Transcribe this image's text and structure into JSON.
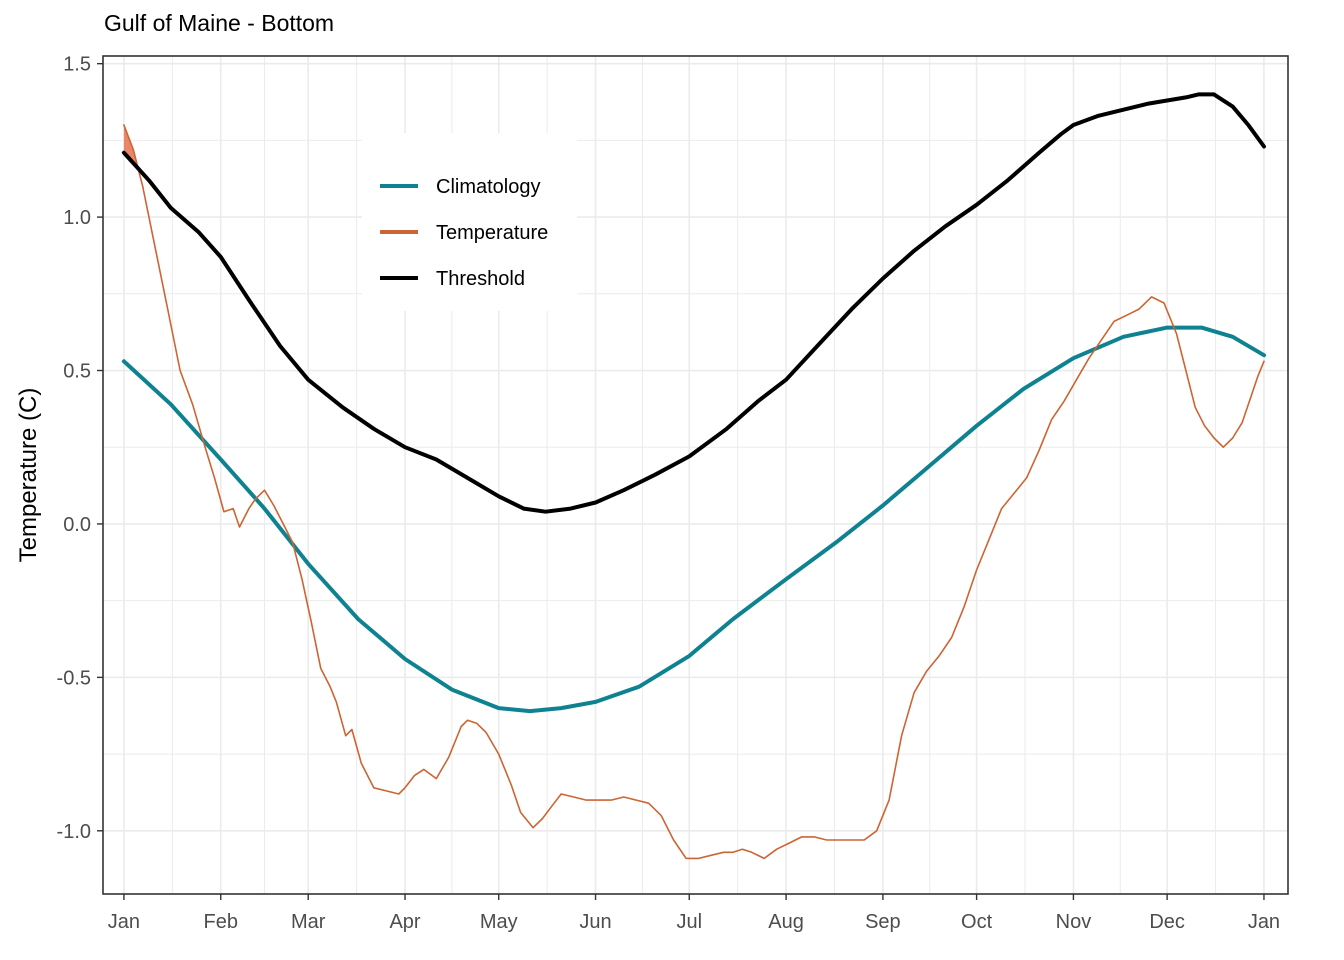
{
  "chart_data": {
    "type": "line",
    "title": "Gulf of Maine - Bottom",
    "xlabel": "",
    "ylabel": "Temperature (C)",
    "xlim": [
      0,
      365
    ],
    "ylim": [
      -1.2,
      1.5
    ],
    "y_ticks": [
      {
        "value": 1.5,
        "label": "1.5"
      },
      {
        "value": 1.0,
        "label": "1.0"
      },
      {
        "value": 0.5,
        "label": "0.5"
      },
      {
        "value": 0.0,
        "label": "0.0"
      },
      {
        "value": -0.5,
        "label": "-0.5"
      },
      {
        "value": -1.0,
        "label": "-1.0"
      }
    ],
    "x_ticks": [
      {
        "day": 0,
        "label": "Jan"
      },
      {
        "day": 31,
        "label": "Feb"
      },
      {
        "day": 59,
        "label": "Mar"
      },
      {
        "day": 90,
        "label": "Apr"
      },
      {
        "day": 120,
        "label": "May"
      },
      {
        "day": 151,
        "label": "Jun"
      },
      {
        "day": 181,
        "label": "Jul"
      },
      {
        "day": 212,
        "label": "Aug"
      },
      {
        "day": 243,
        "label": "Sep"
      },
      {
        "day": 273,
        "label": "Oct"
      },
      {
        "day": 304,
        "label": "Nov"
      },
      {
        "day": 334,
        "label": "Dec"
      },
      {
        "day": 365,
        "label": "Jan"
      }
    ],
    "grid": true,
    "legend_position": "top-left inside",
    "series": [
      {
        "name": "Climatology",
        "color": "#0f8291",
        "x": [
          0,
          15,
          31,
          45,
          59,
          75,
          90,
          105,
          120,
          130,
          140,
          151,
          165,
          181,
          195,
          212,
          228,
          243,
          258,
          273,
          288,
          304,
          320,
          334,
          345,
          355,
          365
        ],
        "y": [
          0.53,
          0.39,
          0.21,
          0.05,
          -0.13,
          -0.31,
          -0.44,
          -0.54,
          -0.6,
          -0.61,
          -0.6,
          -0.58,
          -0.53,
          -0.43,
          -0.31,
          -0.18,
          -0.06,
          0.06,
          0.19,
          0.32,
          0.44,
          0.54,
          0.61,
          0.64,
          0.64,
          0.61,
          0.55
        ]
      },
      {
        "name": "Temperature",
        "color": "#cd6433",
        "x": [
          0,
          3,
          6,
          10,
          14,
          18,
          22,
          26,
          29,
          32,
          35,
          37,
          40,
          42,
          45,
          48,
          51,
          54,
          57,
          60,
          63,
          66,
          68,
          71,
          73,
          76,
          80,
          84,
          88,
          90,
          93,
          96,
          100,
          104,
          108,
          110,
          113,
          116,
          120,
          124,
          127,
          131,
          134,
          137,
          140,
          144,
          148,
          152,
          156,
          160,
          164,
          168,
          172,
          176,
          180,
          184,
          188,
          192,
          195,
          198,
          201,
          205,
          209,
          213,
          217,
          221,
          225,
          229,
          233,
          237,
          241,
          245,
          249,
          253,
          257,
          261,
          265,
          269,
          273,
          277,
          281,
          285,
          289,
          293,
          297,
          301,
          305,
          309,
          313,
          317,
          321,
          325,
          329,
          333,
          337,
          340,
          343,
          346,
          349,
          352,
          355,
          358,
          361,
          363,
          365
        ],
        "y": [
          1.3,
          1.22,
          1.1,
          0.9,
          0.7,
          0.5,
          0.39,
          0.25,
          0.15,
          0.04,
          0.05,
          -0.01,
          0.05,
          0.08,
          0.11,
          0.06,
          0.0,
          -0.06,
          -0.18,
          -0.32,
          -0.47,
          -0.53,
          -0.58,
          -0.69,
          -0.67,
          -0.78,
          -0.86,
          -0.87,
          -0.88,
          -0.86,
          -0.82,
          -0.8,
          -0.83,
          -0.76,
          -0.66,
          -0.64,
          -0.65,
          -0.68,
          -0.75,
          -0.85,
          -0.94,
          -0.99,
          -0.96,
          -0.92,
          -0.88,
          -0.89,
          -0.9,
          -0.9,
          -0.9,
          -0.89,
          -0.9,
          -0.91,
          -0.95,
          -1.03,
          -1.09,
          -1.09,
          -1.08,
          -1.07,
          -1.07,
          -1.06,
          -1.07,
          -1.09,
          -1.06,
          -1.04,
          -1.02,
          -1.02,
          -1.03,
          -1.03,
          -1.03,
          -1.03,
          -1.0,
          -0.9,
          -0.69,
          -0.55,
          -0.48,
          -0.43,
          -0.37,
          -0.27,
          -0.15,
          -0.05,
          0.05,
          0.1,
          0.15,
          0.24,
          0.34,
          0.4,
          0.47,
          0.54,
          0.6,
          0.66,
          0.68,
          0.7,
          0.74,
          0.72,
          0.62,
          0.5,
          0.38,
          0.32,
          0.28,
          0.25,
          0.28,
          0.33,
          0.42,
          0.48,
          0.53
        ]
      },
      {
        "name": "Threshold",
        "color": "#000000",
        "x": [
          0,
          8,
          15,
          24,
          31,
          40,
          50,
          59,
          70,
          80,
          90,
          100,
          110,
          120,
          128,
          135,
          143,
          151,
          160,
          170,
          181,
          193,
          203,
          212,
          222,
          233,
          243,
          253,
          263,
          273,
          283,
          293,
          300,
          304,
          312,
          320,
          328,
          334,
          340,
          344,
          349,
          355,
          360,
          365
        ],
        "y": [
          1.21,
          1.12,
          1.03,
          0.95,
          0.87,
          0.73,
          0.58,
          0.47,
          0.38,
          0.31,
          0.25,
          0.21,
          0.15,
          0.09,
          0.05,
          0.04,
          0.05,
          0.07,
          0.11,
          0.16,
          0.22,
          0.31,
          0.4,
          0.47,
          0.58,
          0.7,
          0.8,
          0.89,
          0.97,
          1.04,
          1.12,
          1.21,
          1.27,
          1.3,
          1.33,
          1.35,
          1.37,
          1.38,
          1.39,
          1.4,
          1.4,
          1.36,
          1.3,
          1.23
        ]
      }
    ]
  }
}
